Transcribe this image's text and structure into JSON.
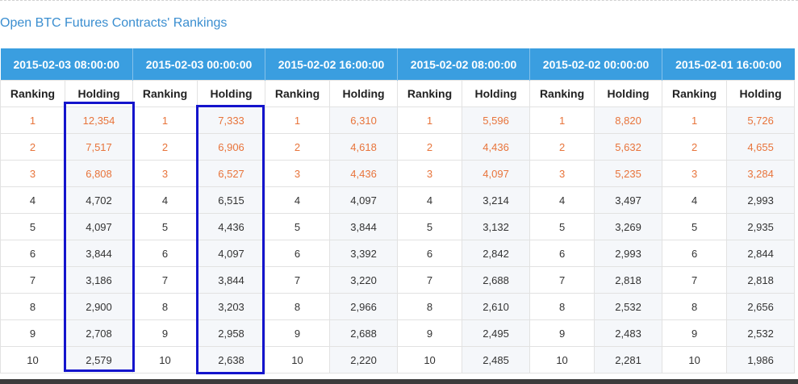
{
  "page": {
    "title": "Open BTC Futures Contracts' Rankings"
  },
  "table": {
    "sub_headers": {
      "ranking": "Ranking",
      "holding": "Holding"
    },
    "periods": [
      {
        "date": "2015-02-03 08:00:00",
        "holdings": [
          "12,354",
          "7,517",
          "6,808",
          "4,702",
          "4,097",
          "3,844",
          "3,186",
          "2,900",
          "2,708",
          "2,579"
        ]
      },
      {
        "date": "2015-02-03 00:00:00",
        "holdings": [
          "7,333",
          "6,906",
          "6,527",
          "6,515",
          "4,436",
          "4,097",
          "3,844",
          "3,203",
          "2,958",
          "2,638"
        ]
      },
      {
        "date": "2015-02-02 16:00:00",
        "holdings": [
          "6,310",
          "4,618",
          "4,436",
          "4,097",
          "3,844",
          "3,392",
          "3,220",
          "2,966",
          "2,688",
          "2,220"
        ]
      },
      {
        "date": "2015-02-02 08:00:00",
        "holdings": [
          "5,596",
          "4,436",
          "4,097",
          "3,214",
          "3,132",
          "2,842",
          "2,688",
          "2,610",
          "2,495",
          "2,485"
        ]
      },
      {
        "date": "2015-02-02 00:00:00",
        "holdings": [
          "8,820",
          "5,632",
          "5,235",
          "3,497",
          "3,269",
          "2,993",
          "2,818",
          "2,532",
          "2,483",
          "2,281"
        ]
      },
      {
        "date": "2015-02-01 16:00:00",
        "holdings": [
          "5,726",
          "4,655",
          "3,284",
          "2,993",
          "2,935",
          "2,844",
          "2,818",
          "2,656",
          "2,532",
          "1,986"
        ]
      }
    ],
    "ranks": [
      "1",
      "2",
      "3",
      "4",
      "5",
      "6",
      "7",
      "8",
      "9",
      "10"
    ]
  },
  "colors": {
    "header_bg": "#3a9ee0",
    "title": "#3a8ed0",
    "top3_text": "#e8743b",
    "highlight_box": "#1414cc"
  }
}
